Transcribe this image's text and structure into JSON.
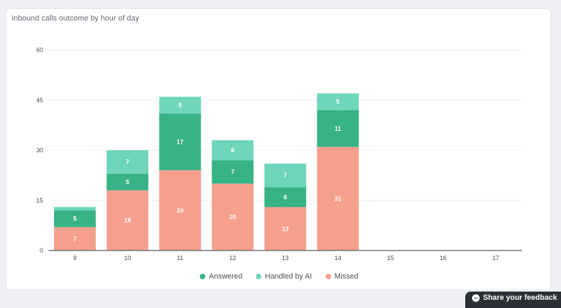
{
  "chart_data": {
    "type": "bar",
    "stacked": true,
    "title": "Inbound calls outcome by hour of day",
    "xlabel": "",
    "ylabel": "",
    "categories": [
      "9",
      "10",
      "11",
      "12",
      "13",
      "14",
      "15",
      "16",
      "17"
    ],
    "ylim": [
      0,
      60
    ],
    "yticks": [
      0,
      15,
      30,
      45,
      60
    ],
    "grid": true,
    "legend_position": "bottom-center",
    "series": [
      {
        "name": "Missed",
        "color": "#f5a08c",
        "values": [
          7,
          18,
          24,
          20,
          13,
          31,
          0,
          0,
          0
        ]
      },
      {
        "name": "Answered",
        "color": "#38b386",
        "values": [
          5,
          5,
          17,
          7,
          6,
          11,
          0,
          0,
          0
        ]
      },
      {
        "name": "Handled by AI",
        "color": "#6fd5bb",
        "values": [
          1,
          7,
          5,
          6,
          7,
          5,
          0,
          0,
          0
        ]
      }
    ],
    "data_labels": {
      "Missed": [
        "7",
        "18",
        "24",
        "20",
        "13",
        "31",
        "",
        "",
        ""
      ],
      "Answered": [
        "5",
        "5",
        "17",
        "7",
        "6",
        "11",
        "",
        "",
        ""
      ],
      "Handled by AI": [
        "",
        "7",
        "5",
        "6",
        "7",
        "5",
        "",
        "",
        ""
      ]
    }
  },
  "legend": [
    {
      "label": "Answered",
      "color": "#38b386"
    },
    {
      "label": "Handled by AI",
      "color": "#6fd5bb"
    },
    {
      "label": "Missed",
      "color": "#f5a08c"
    }
  ],
  "feedback": {
    "label": "Share your feedback",
    "icon": "chat-bubble-icon"
  }
}
